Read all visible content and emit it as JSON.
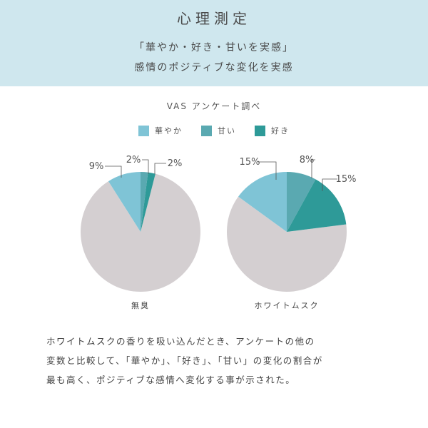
{
  "header": {
    "title": "心理測定",
    "line1": "「華やか・好き・甘いを実感」",
    "line2": "感情のポジティブな変化を実感"
  },
  "colors": {
    "header_bg": "#cfe7ee",
    "rest": "#d4cfd1",
    "hanayaka": "#7fc4d6",
    "amai": "#5aa9b1",
    "suki": "#2e9a98"
  },
  "chart_data": {
    "type": "pie",
    "title": "VAS アンケート調べ",
    "legend": [
      {
        "name": "華やか",
        "color": "#7fc4d6"
      },
      {
        "name": "甘い",
        "color": "#5aa9b1"
      },
      {
        "name": "好き",
        "color": "#2e9a98"
      }
    ],
    "legend_position": "top-center",
    "pies": [
      {
        "name": "無臭",
        "slices": [
          {
            "name": "華やか",
            "value": 9,
            "label": "9%"
          },
          {
            "name": "甘い",
            "value": 2,
            "label": "2%"
          },
          {
            "name": "好き",
            "value": 2,
            "label": "2%"
          }
        ]
      },
      {
        "name": "ホワイトムスク",
        "slices": [
          {
            "name": "華やか",
            "value": 15,
            "label": "15%"
          },
          {
            "name": "甘い",
            "value": 8,
            "label": "8%"
          },
          {
            "name": "好き",
            "value": 15,
            "label": "15%"
          }
        ]
      }
    ]
  },
  "body": {
    "lines": [
      "ホワイトムスクの香りを吸い込んだとき、アンケートの他の",
      "変数と比較して、「華やか」、「好き」、「甘い」の変化の割合が",
      "最も高く、ポジティブな感情へ変化する事が示された。"
    ]
  }
}
